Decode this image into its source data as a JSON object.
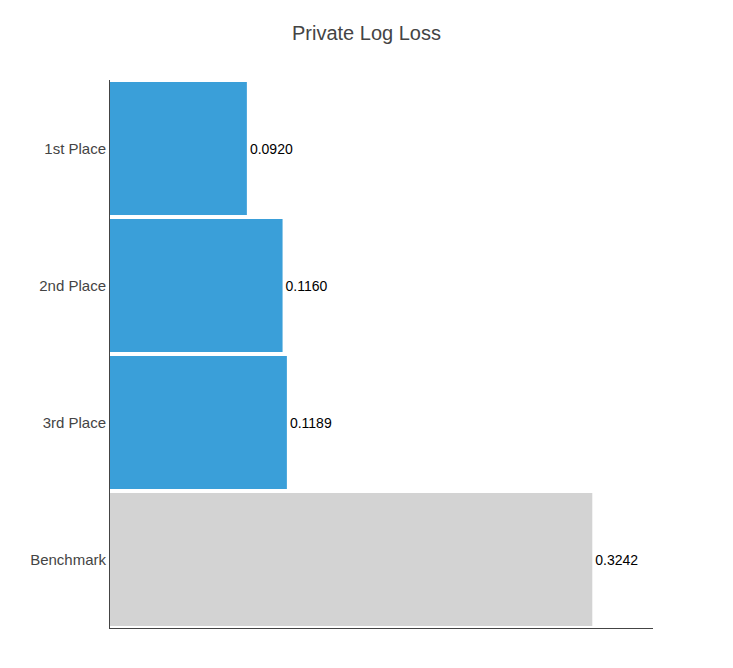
{
  "chart_data": {
    "type": "bar",
    "orientation": "horizontal",
    "title": "Private Log Loss",
    "categories": [
      "1st Place",
      "2nd Place",
      "3rd Place",
      "Benchmark"
    ],
    "values": [
      0.092,
      0.116,
      0.1189,
      0.3242
    ],
    "value_labels": [
      "0.0920",
      "0.1160",
      "0.1189",
      "0.3242"
    ],
    "colors": [
      "#3a9fd9",
      "#3a9fd9",
      "#3a9fd9",
      "#d3d3d3"
    ],
    "xlim": [
      0,
      0.365
    ],
    "data_labels": true,
    "tick_labels": "y",
    "grid": false
  }
}
